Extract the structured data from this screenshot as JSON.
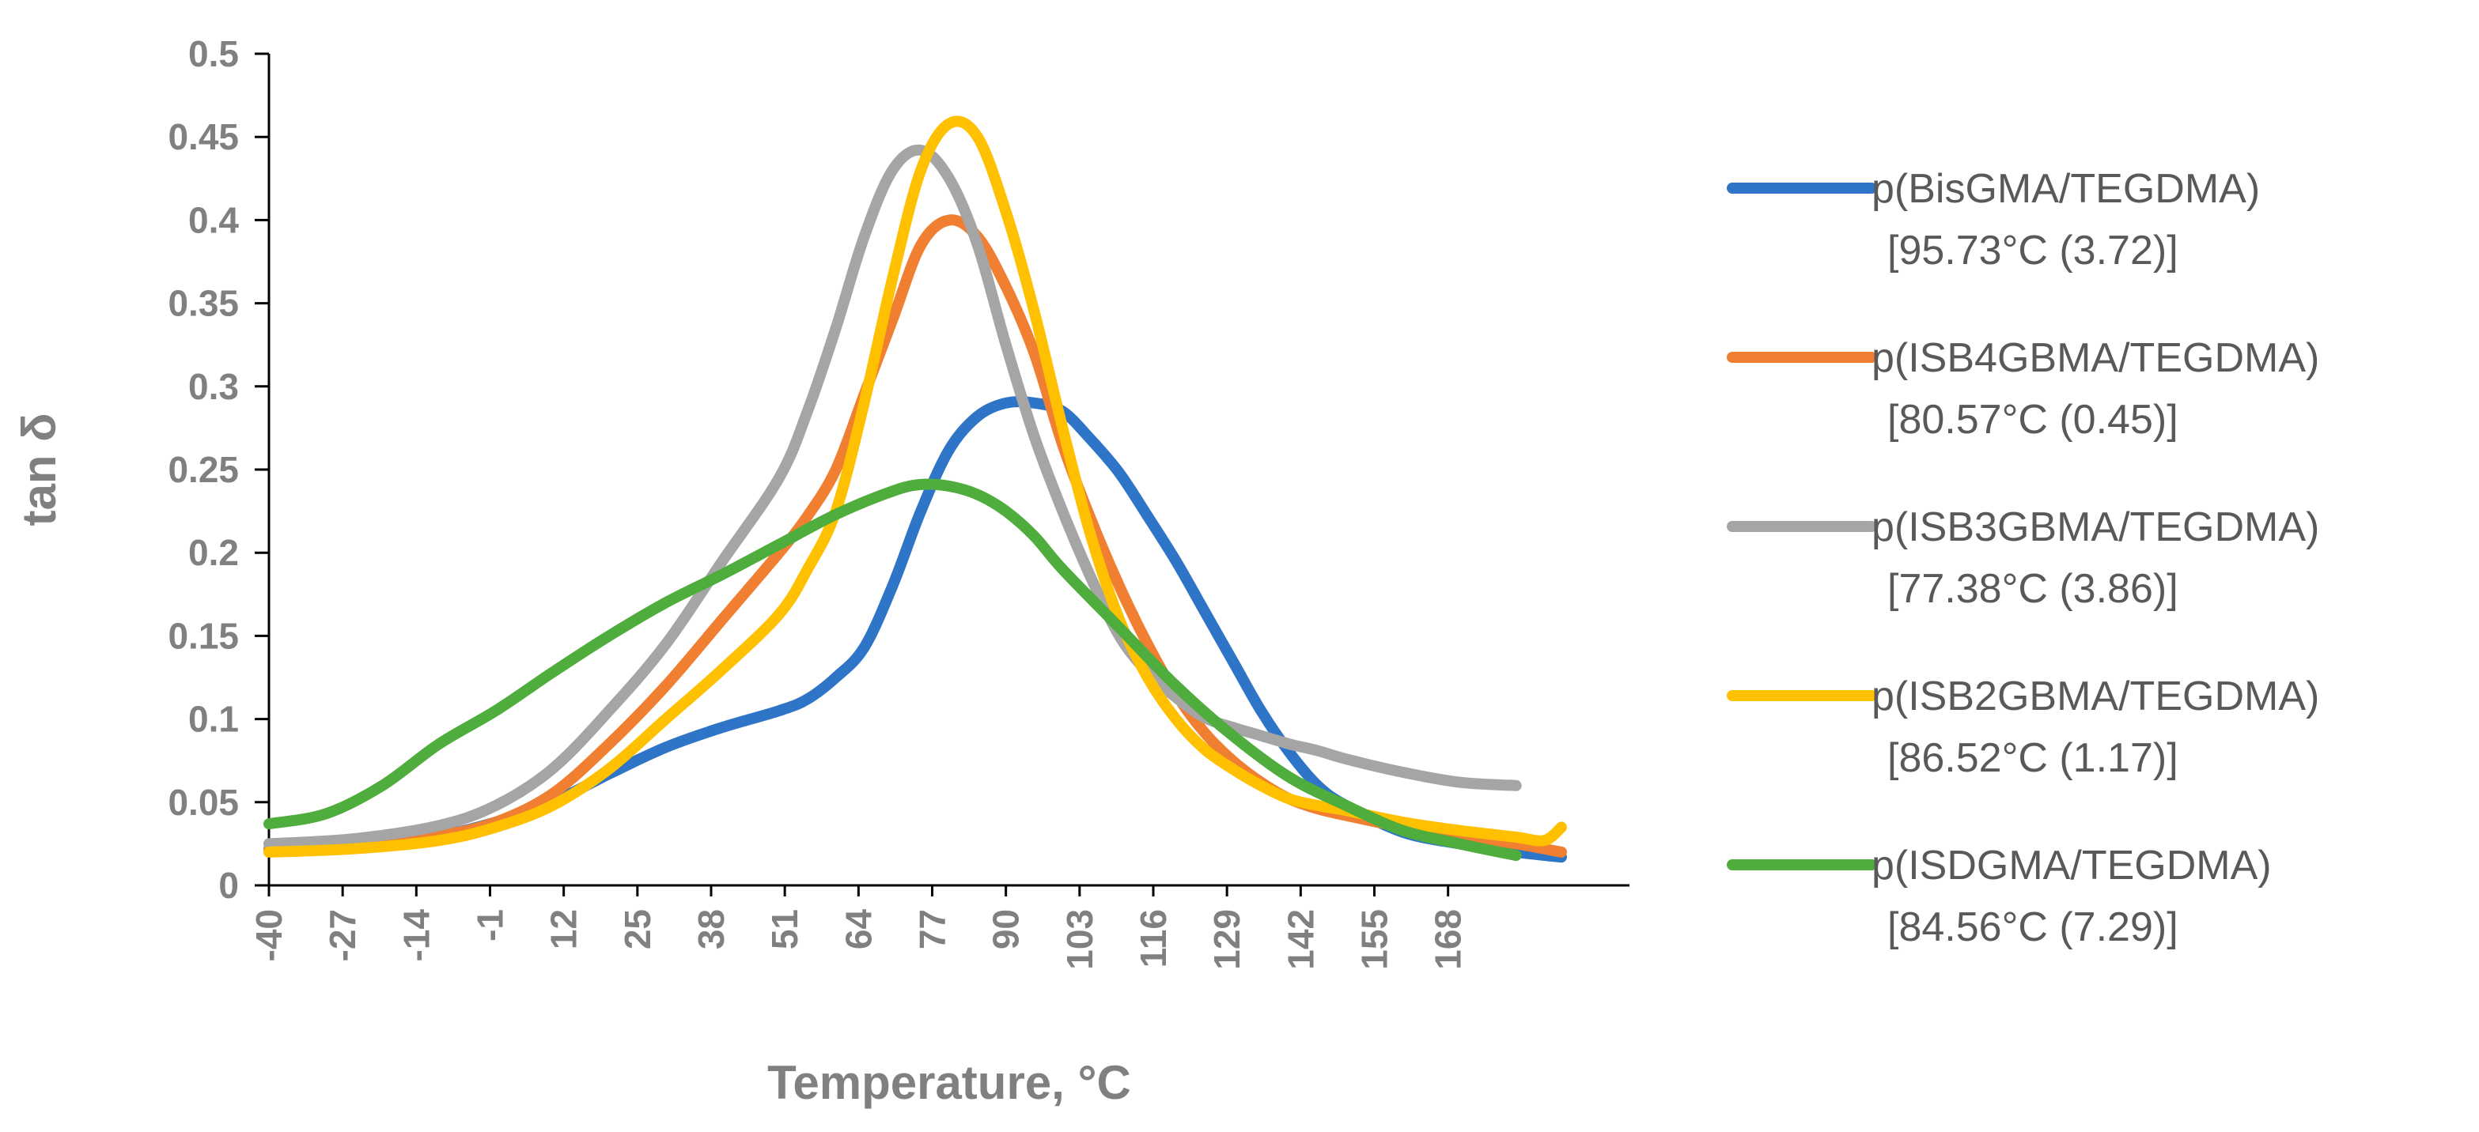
{
  "chart_data": {
    "type": "line",
    "title": "",
    "xlabel": "Temperature, °C",
    "ylabel": "tan δ",
    "xlim": [
      -40,
      200
    ],
    "ylim": [
      0,
      0.5
    ],
    "x_ticks": [
      "-40",
      "-27",
      "-14",
      "-1",
      "12",
      "25",
      "38",
      "51",
      "64",
      "77",
      "90",
      "103",
      "116",
      "129",
      "142",
      "155",
      "168"
    ],
    "y_ticks": [
      "0",
      "0.05",
      "0.1",
      "0.15",
      "0.2",
      "0.25",
      "0.3",
      "0.35",
      "0.4",
      "0.45",
      "0.5"
    ],
    "legend_position": "right",
    "series": [
      {
        "name": "p(BisGMA/TEGDMA)",
        "subtitle": "[95.73°C (3.72)]",
        "color": "#2E75C8",
        "x": [
          -40,
          -25,
          -10,
          0,
          10,
          20,
          30,
          40,
          50,
          55,
          60,
          65,
          70,
          75,
          80,
          85,
          90,
          95,
          100,
          105,
          110,
          115,
          120,
          125,
          130,
          135,
          140,
          145,
          150,
          160,
          170,
          180,
          188
        ],
        "y": [
          0.022,
          0.023,
          0.03,
          0.038,
          0.05,
          0.067,
          0.083,
          0.095,
          0.105,
          0.112,
          0.125,
          0.143,
          0.18,
          0.225,
          0.262,
          0.282,
          0.29,
          0.29,
          0.285,
          0.268,
          0.248,
          0.222,
          0.195,
          0.165,
          0.135,
          0.105,
          0.08,
          0.06,
          0.048,
          0.032,
          0.025,
          0.02,
          0.017
        ]
      },
      {
        "name": "p(ISB4GBMA/TEGDMA)",
        "subtitle": "[80.57°C (0.45)]",
        "color": "#F07F32",
        "x": [
          -40,
          -25,
          -10,
          0,
          10,
          20,
          30,
          40,
          50,
          55,
          60,
          65,
          70,
          75,
          80,
          85,
          90,
          95,
          100,
          105,
          110,
          115,
          120,
          125,
          130,
          135,
          140,
          145,
          150,
          160,
          170,
          180,
          188
        ],
        "y": [
          0.022,
          0.024,
          0.03,
          0.038,
          0.055,
          0.085,
          0.12,
          0.16,
          0.2,
          0.222,
          0.25,
          0.295,
          0.34,
          0.385,
          0.4,
          0.39,
          0.36,
          0.32,
          0.265,
          0.22,
          0.18,
          0.145,
          0.115,
          0.092,
          0.075,
          0.062,
          0.052,
          0.046,
          0.042,
          0.035,
          0.03,
          0.025,
          0.02
        ]
      },
      {
        "name": "p(ISB3GBMA/TEGDMA)",
        "subtitle": "[77.38°C (3.86)]",
        "color": "#A5A5A5",
        "x": [
          -40,
          -25,
          -10,
          0,
          10,
          20,
          30,
          40,
          50,
          55,
          60,
          65,
          70,
          75,
          80,
          85,
          90,
          95,
          100,
          105,
          110,
          115,
          120,
          125,
          130,
          135,
          140,
          145,
          150,
          160,
          170,
          180
        ],
        "y": [
          0.025,
          0.028,
          0.036,
          0.048,
          0.07,
          0.105,
          0.145,
          0.195,
          0.245,
          0.285,
          0.335,
          0.39,
          0.43,
          0.442,
          0.425,
          0.385,
          0.325,
          0.27,
          0.225,
          0.185,
          0.15,
          0.128,
          0.113,
          0.101,
          0.095,
          0.09,
          0.085,
          0.081,
          0.076,
          0.068,
          0.062,
          0.06
        ]
      },
      {
        "name": "p(ISB2GBMA/TEGDMA)",
        "subtitle": "[86.52°C (1.17)]",
        "color": "#FFC000",
        "x": [
          -40,
          -25,
          -10,
          0,
          10,
          20,
          30,
          40,
          50,
          55,
          60,
          65,
          70,
          75,
          80,
          85,
          90,
          95,
          100,
          105,
          110,
          115,
          120,
          125,
          130,
          135,
          140,
          145,
          150,
          160,
          170,
          180,
          185,
          188
        ],
        "y": [
          0.02,
          0.022,
          0.027,
          0.035,
          0.048,
          0.07,
          0.1,
          0.13,
          0.163,
          0.19,
          0.225,
          0.29,
          0.365,
          0.43,
          0.458,
          0.45,
          0.405,
          0.345,
          0.275,
          0.21,
          0.16,
          0.125,
          0.1,
          0.082,
          0.07,
          0.06,
          0.052,
          0.048,
          0.045,
          0.038,
          0.033,
          0.029,
          0.027,
          0.035
        ]
      },
      {
        "name": "p(ISDGMA/TEGDMA)",
        "subtitle": "[84.56°C (7.29)]",
        "color": "#4EAD3C",
        "x": [
          -40,
          -30,
          -20,
          -10,
          0,
          10,
          20,
          30,
          40,
          50,
          60,
          70,
          75,
          80,
          85,
          90,
          95,
          100,
          110,
          120,
          130,
          140,
          150,
          160,
          170,
          180
        ],
        "y": [
          0.037,
          0.043,
          0.06,
          0.085,
          0.105,
          0.128,
          0.15,
          0.17,
          0.187,
          0.205,
          0.223,
          0.237,
          0.241,
          0.24,
          0.235,
          0.225,
          0.21,
          0.19,
          0.155,
          0.12,
          0.09,
          0.065,
          0.048,
          0.033,
          0.025,
          0.018
        ]
      }
    ]
  }
}
